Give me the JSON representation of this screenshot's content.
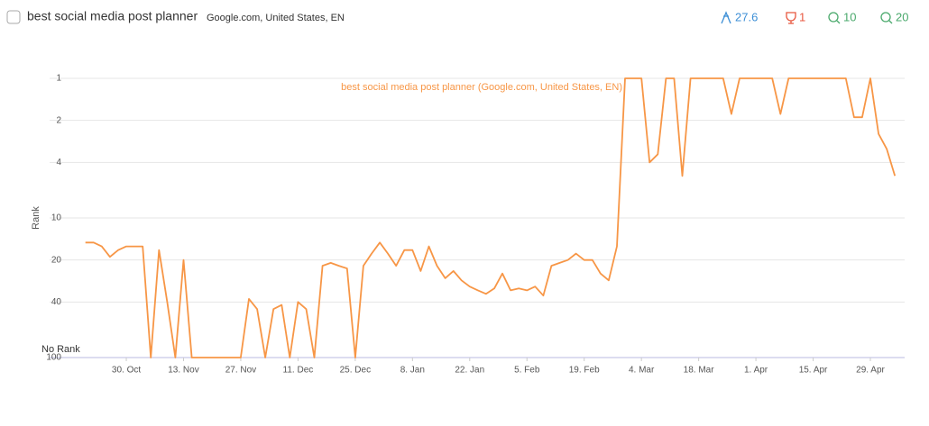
{
  "header": {
    "title": "best social media post planner",
    "subtitle": "Google.com, United States, EN",
    "stats": [
      27.6,
      1,
      10,
      20
    ]
  },
  "chart_data": {
    "type": "line",
    "y_label": "Rank",
    "no_rank_label": "No Rank",
    "y_scale": "log",
    "y_inverted": true,
    "grid": true,
    "ylim": [
      1,
      100
    ],
    "yticks": [
      1,
      2,
      4,
      10,
      20,
      40,
      100
    ],
    "categories": [
      null,
      null,
      null,
      null,
      null,
      "30. Oct",
      null,
      null,
      null,
      null,
      null,
      null,
      "13. Nov",
      null,
      null,
      null,
      null,
      null,
      null,
      "27. Nov",
      null,
      null,
      null,
      null,
      null,
      null,
      "11. Dec",
      null,
      null,
      null,
      null,
      null,
      null,
      "25. Dec",
      null,
      null,
      null,
      null,
      null,
      null,
      "8. Jan",
      null,
      null,
      null,
      null,
      null,
      null,
      "22. Jan",
      null,
      null,
      null,
      null,
      null,
      null,
      "5. Feb",
      null,
      null,
      null,
      null,
      null,
      null,
      "19. Feb",
      null,
      null,
      null,
      null,
      null,
      null,
      "4. Mar",
      null,
      null,
      null,
      null,
      null,
      null,
      "18. Mar",
      null,
      null,
      null,
      null,
      null,
      null,
      "1. Apr",
      null,
      null,
      null,
      null,
      null,
      null,
      "15. Apr",
      null,
      null,
      null,
      null,
      null,
      null,
      "29. Apr",
      null,
      null,
      null
    ],
    "series": [
      {
        "name": "best social media post planner (Google.com, United States, EN)",
        "color": "#f79646",
        "values": [
          15,
          15,
          16,
          19,
          17,
          16,
          16,
          16,
          100,
          17,
          40,
          100,
          20,
          100,
          100,
          100,
          100,
          100,
          100,
          100,
          38,
          45,
          100,
          45,
          42,
          100,
          40,
          45,
          100,
          22,
          21,
          22,
          23,
          100,
          22,
          18,
          15,
          18,
          22,
          17,
          17,
          24,
          16,
          22,
          27,
          24,
          28,
          31,
          33,
          35,
          32,
          25,
          33,
          32,
          33,
          31,
          36,
          22,
          21,
          20,
          18,
          20,
          20,
          25,
          28,
          16,
          1,
          1,
          1,
          4,
          3.5,
          1,
          1,
          5,
          1,
          1,
          1,
          1,
          1,
          1.8,
          1,
          1,
          1,
          1,
          1,
          1.8,
          1,
          1,
          1,
          1,
          1,
          1,
          1,
          1,
          1.9,
          1.9,
          1,
          2.5,
          3.2,
          5
        ]
      }
    ]
  }
}
